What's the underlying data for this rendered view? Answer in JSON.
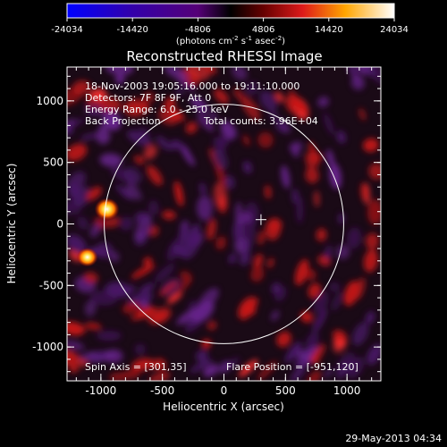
{
  "colorbar": {
    "tick_labels": [
      "-24034",
      "-14420",
      "-4806",
      "4806",
      "14420",
      "24034"
    ],
    "range": [
      -24034,
      24034
    ],
    "units_prefix": "(photons cm",
    "units_exp1": "-2",
    "units_mid1": " s",
    "units_exp2": "-1",
    "units_mid2": " asec",
    "units_exp3": "-2",
    "units_suffix": ")"
  },
  "plot": {
    "title": "Reconstructed RHESSI Image",
    "xlabel": "Heliocentric X (arcsec)",
    "ylabel": "Heliocentric Y (arcsec)",
    "xticks": [
      "-1000",
      "-500",
      "0",
      "500",
      "1000"
    ],
    "yticks": [
      "1000",
      "500",
      "0",
      "-500",
      "-1000"
    ],
    "xrange": [
      -1275,
      1275
    ],
    "yrange": [
      -1275,
      1275
    ],
    "sun_center": [
      0,
      0
    ],
    "solar_radius": 973,
    "spin_axis": [
      301,
      35
    ],
    "sources": [
      {
        "x": -951,
        "y": 120,
        "level": 1.0
      },
      {
        "x": -1110,
        "y": -270,
        "level": 0.85
      }
    ]
  },
  "info": {
    "time_range": "18-Nov-2003 19:05:16.000 to 19:11:10.000",
    "detectors": "Detectors: 7F 8F 9F, Att 0",
    "energy_range": "Energy Range: 6.0 - 25.0 keV",
    "method": "Back Projection",
    "total_counts": "Total counts: 3.96E+04",
    "spin_axis_label": "Spin Axis = [301,35]",
    "flare_position": "Flare Position = [-951,120]"
  },
  "footer": {
    "date": "29-May-2013 04:34"
  },
  "colors": {
    "background": "#000000",
    "text": "#ffffff",
    "circle": "#ffffff"
  }
}
